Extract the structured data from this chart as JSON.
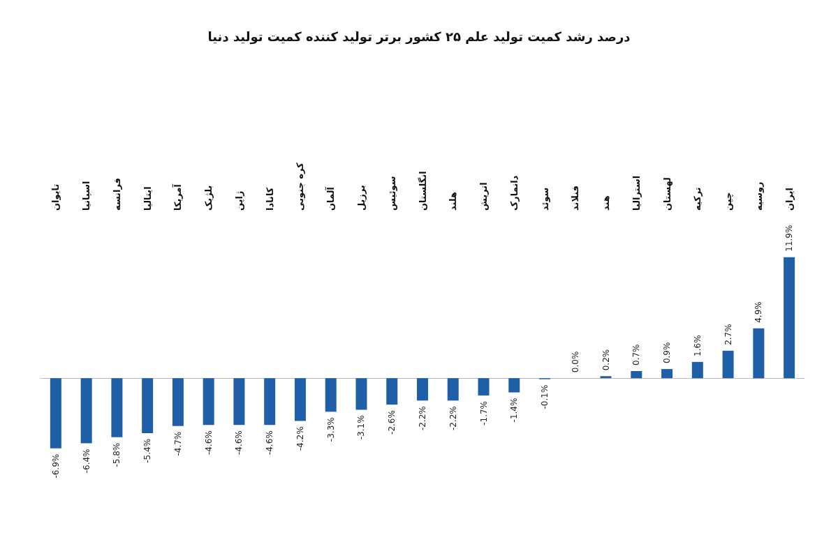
{
  "chart_data": {
    "type": "bar",
    "title": "درصد رشد کمیت تولید علم ۲۵ کشور برتر تولید کننده کمیت تولید دنیا",
    "categories": [
      "تایوان",
      "اسپانیا",
      "فرانسه",
      "ایتالیا",
      "آمریکا",
      "بلژیک",
      "ژاپن",
      "کانادا",
      "کره جنوبی",
      "آلمان",
      "برزیل",
      "سوئیس",
      "انگلستان",
      "هلند",
      "اتریش",
      "دانمارک",
      "سوئد",
      "فنلاند",
      "هند",
      "استرالیا",
      "لهستان",
      "ترکیه",
      "چین",
      "روسیه",
      "ایران"
    ],
    "values": [
      -6.9,
      -6.4,
      -5.8,
      -5.4,
      -4.7,
      -4.6,
      -4.6,
      -4.6,
      -4.2,
      -3.3,
      -3.1,
      -2.6,
      -2.2,
      -2.2,
      -1.7,
      -1.4,
      -0.1,
      0.0,
      0.2,
      0.7,
      0.9,
      1.6,
      2.7,
      4.9,
      11.9
    ],
    "value_labels": [
      "-6.9%",
      "-6.4%",
      "-5.8%",
      "-5.4%",
      "-4.7%",
      "-4.6%",
      "-4.6%",
      "-4.6%",
      "-4.2%",
      "-3.3%",
      "-3.1%",
      "-2.6%",
      "-2.2%",
      "-2.2%",
      "-1.7%",
      "-1.4%",
      "-0.1%",
      "0.0%",
      "0.2%",
      "0.7%",
      "0.9%",
      "1.6%",
      "2.7%",
      "4.9%",
      "11.9%"
    ],
    "color": "#1f5fa8",
    "grid": false
  }
}
